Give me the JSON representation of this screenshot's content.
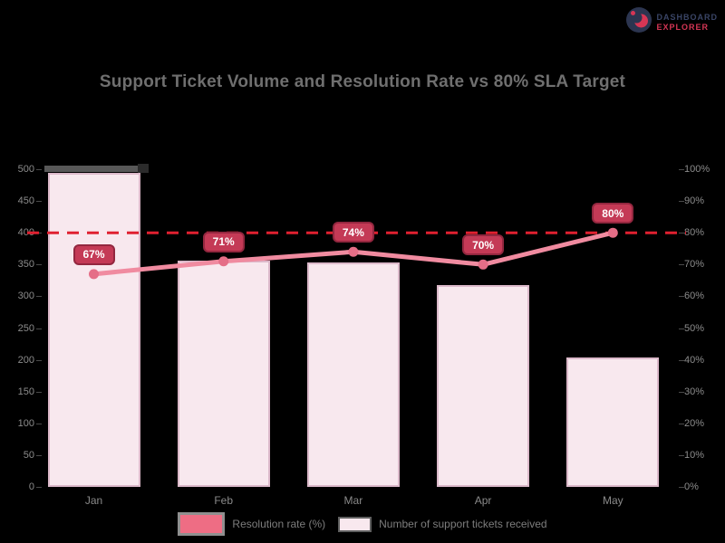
{
  "logo": {
    "icon": "aperture-logo-icon",
    "line1": "DASHBOARD",
    "line2": "EXPLORER",
    "line1_color": "#3a4566",
    "line2_color": "#d63655"
  },
  "title": "Support Ticket Volume and Resolution Rate vs 80% SLA Target",
  "axes": {
    "left_ticks": [
      "500",
      "450",
      "400",
      "350",
      "300",
      "250",
      "200",
      "150",
      "100",
      "50",
      "0"
    ],
    "right_ticks": [
      "100%",
      "90%",
      "80%",
      "70%",
      "60%",
      "50%",
      "40%",
      "30%",
      "20%",
      "10%",
      "0%"
    ]
  },
  "legend": [
    {
      "label": "Resolution rate (%)",
      "swatch_color": "#ee6d84",
      "series_type": "line"
    },
    {
      "label": "Number of support tickets received",
      "swatch_color": "#f8e8ee",
      "series_type": "bar"
    }
  ],
  "colors": {
    "background": "#000000",
    "title_text": "#6f6f6f",
    "axis_text": "#8c8c8c",
    "bar_fill": "#f8e8ee",
    "bar_border": "#dcb9ca",
    "bar_highlight_cap": "#585858",
    "line": "#f08ba0",
    "marker": "#e56e87",
    "callout_fill": "#c43a56",
    "callout_border": "#93273f",
    "callout_text": "#ffffff",
    "target_dashed_line": "#e02030",
    "legend_text": "#7d7d7d"
  },
  "chart_data": {
    "type": "bar",
    "subtype": "combo-bar-line-dual-axis",
    "title": "Support Ticket Volume and Resolution Rate vs 80% SLA Target",
    "categories": [
      "Jan",
      "Feb",
      "Mar",
      "Apr",
      "May"
    ],
    "series": [
      {
        "name": "Number of support tickets received",
        "type": "bar",
        "axis": "left",
        "values": [
          495,
          356,
          353,
          318,
          204
        ]
      },
      {
        "name": "Resolution rate (%)",
        "type": "line",
        "axis": "right",
        "values": [
          67,
          71,
          74,
          70,
          80
        ],
        "point_labels": [
          "67%",
          "71%",
          "74%",
          "70%",
          "80%"
        ]
      }
    ],
    "target_line": {
      "axis": "right",
      "value": 80,
      "style": "dashed",
      "color": "#e02030"
    },
    "left_axis": {
      "min": 0,
      "max": 500,
      "step": 50
    },
    "right_axis": {
      "min": 0,
      "max": 100,
      "step": 10,
      "format": "percent"
    },
    "grid": false,
    "legend_position": "bottom",
    "xlabel": "",
    "ylabel_left": "",
    "ylabel_right": ""
  }
}
